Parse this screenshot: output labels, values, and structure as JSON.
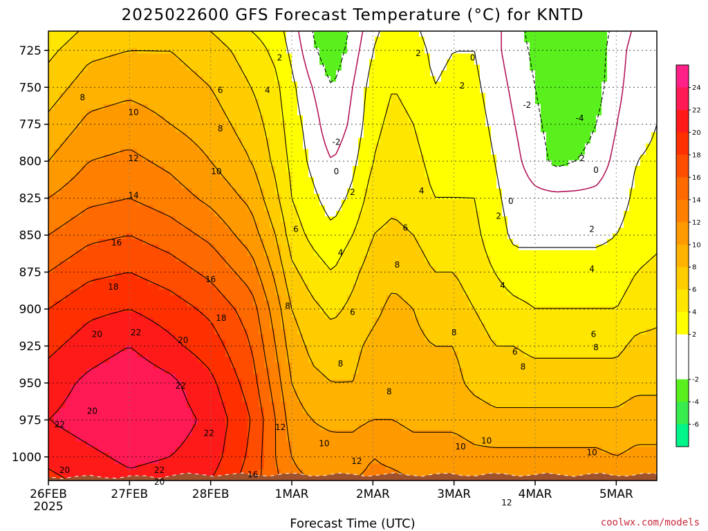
{
  "chart_data": {
    "type": "heatmap",
    "title": "2025022600 GFS Forecast Temperature (°C) for KNTD",
    "xlabel": "Forecast Time (UTC)",
    "ylabel": "",
    "credit": "coolwx.com/models",
    "x_ticks": [
      {
        "label": "26FEB",
        "sublabel": "2025",
        "day": 0
      },
      {
        "label": "27FEB",
        "sublabel": "",
        "day": 1
      },
      {
        "label": "28FEB",
        "sublabel": "",
        "day": 2
      },
      {
        "label": "1MAR",
        "sublabel": "",
        "day": 3
      },
      {
        "label": "2MAR",
        "sublabel": "",
        "day": 4
      },
      {
        "label": "3MAR",
        "sublabel": "",
        "day": 5
      },
      {
        "label": "4MAR",
        "sublabel": "",
        "day": 6
      },
      {
        "label": "5MAR",
        "sublabel": "",
        "day": 7
      }
    ],
    "xlim": [
      0,
      7.5
    ],
    "y_ticks": [
      725,
      750,
      775,
      800,
      825,
      850,
      875,
      900,
      925,
      950,
      975,
      1000
    ],
    "ylim": [
      1016,
      712
    ],
    "y_scale": "linear-pressure-inverted",
    "grid": true,
    "colorbar": {
      "position": "right",
      "levels": [
        -8,
        -6,
        -4,
        -2,
        0,
        2,
        4,
        6,
        8,
        10,
        12,
        14,
        16,
        18,
        20,
        22,
        24,
        26
      ],
      "tick_labels": [
        "24",
        "22",
        "20",
        "18",
        "16",
        "14",
        "12",
        "10",
        "8",
        "6",
        "4",
        "2",
        "-2",
        "-4",
        "-6"
      ],
      "colors": [
        "#00f58a",
        "#38ec4e",
        "#5af01e",
        "#ffffff",
        "#ffffff",
        "#ffff00",
        "#ffe600",
        "#ffcc00",
        "#ffb300",
        "#ff9900",
        "#ff8000",
        "#ff6a00",
        "#ff4d00",
        "#ff3000",
        "#ff1a1a",
        "#ff1a55",
        "#ff2088"
      ]
    },
    "ground_color": "#a0522d",
    "freezing_line_color": "#b4145a",
    "field_columns_day": [
      0.0,
      0.5,
      1.0,
      1.5,
      2.0,
      2.5,
      2.8,
      3.0,
      3.25,
      3.5,
      3.75,
      4.0,
      4.25,
      4.5,
      4.75,
      5.0,
      5.25,
      5.5,
      5.75,
      6.0,
      6.25,
      6.5,
      6.75,
      7.0,
      7.25,
      7.5
    ],
    "field_rows_pressure": [
      712,
      725,
      750,
      775,
      800,
      825,
      850,
      875,
      900,
      925,
      950,
      975,
      1000,
      1016
    ],
    "temperature_field_c": [
      [
        4.5,
        6.5,
        7.0,
        7.0,
        6.0,
        4.0,
        3.0,
        1.0,
        -2.0,
        -4.0,
        -1.5,
        1.5,
        3.0,
        2.5,
        1.0,
        1.5,
        1.5,
        0.5,
        -1.0,
        -3.0,
        -3.5,
        -4.0,
        -3.0,
        -1.5,
        0.5,
        1.0
      ],
      [
        5.5,
        7.5,
        8.0,
        8.0,
        7.0,
        5.0,
        3.5,
        1.5,
        -1.5,
        -3.5,
        -1.0,
        2.0,
        3.5,
        3.0,
        1.5,
        2.0,
        2.0,
        0.5,
        -1.0,
        -2.5,
        -3.5,
        -4.0,
        -3.0,
        -1.0,
        1.0,
        1.5
      ],
      [
        7.0,
        9.0,
        9.5,
        9.0,
        8.0,
        6.0,
        4.5,
        2.5,
        0.0,
        -2.0,
        0.0,
        3.0,
        4.0,
        3.5,
        2.0,
        2.5,
        2.5,
        1.0,
        -0.5,
        -2.0,
        -3.5,
        -4.0,
        -3.0,
        -0.5,
        1.0,
        1.5
      ],
      [
        8.5,
        10.5,
        11.0,
        10.0,
        9.0,
        7.0,
        5.0,
        3.0,
        1.0,
        -1.5,
        0.5,
        3.5,
        4.5,
        4.0,
        3.0,
        3.0,
        3.0,
        1.5,
        0.0,
        -1.5,
        -3.0,
        -3.5,
        -2.0,
        0.0,
        1.0,
        2.0
      ],
      [
        10.0,
        12.0,
        12.5,
        11.5,
        10.0,
        8.0,
        5.5,
        3.5,
        1.5,
        0.0,
        1.5,
        4.0,
        5.0,
        4.5,
        3.5,
        3.5,
        3.5,
        2.0,
        0.5,
        -1.0,
        -2.5,
        -2.0,
        -1.0,
        0.5,
        2.0,
        2.5
      ],
      [
        12.0,
        13.5,
        14.0,
        13.0,
        11.5,
        9.5,
        6.5,
        4.0,
        2.5,
        1.0,
        2.5,
        5.0,
        5.5,
        5.0,
        4.0,
        4.0,
        4.0,
        2.5,
        1.0,
        0.5,
        0.5,
        0.5,
        0.5,
        1.0,
        2.5,
        3.0
      ],
      [
        14.0,
        15.5,
        16.0,
        15.0,
        13.5,
        11.0,
        8.0,
        5.0,
        3.5,
        2.5,
        4.0,
        6.0,
        6.5,
        6.0,
        5.0,
        5.0,
        4.5,
        3.0,
        1.5,
        1.5,
        1.5,
        1.5,
        1.5,
        2.0,
        3.0,
        3.5
      ],
      [
        16.0,
        17.5,
        18.0,
        17.0,
        15.5,
        13.0,
        9.5,
        6.5,
        5.0,
        4.0,
        5.5,
        7.0,
        7.5,
        7.0,
        6.0,
        6.0,
        5.0,
        4.0,
        3.0,
        3.0,
        3.0,
        3.0,
        3.0,
        3.0,
        4.0,
        4.5
      ],
      [
        18.0,
        19.5,
        20.0,
        19.0,
        17.5,
        15.0,
        11.0,
        8.0,
        6.5,
        5.5,
        6.5,
        7.5,
        8.5,
        8.0,
        7.0,
        7.0,
        6.0,
        5.0,
        4.5,
        4.0,
        4.0,
        4.0,
        4.0,
        4.0,
        5.0,
        5.5
      ],
      [
        19.5,
        21.0,
        22.0,
        20.5,
        19.0,
        16.0,
        12.0,
        9.0,
        7.5,
        7.0,
        7.5,
        8.5,
        9.0,
        8.5,
        8.0,
        8.0,
        7.0,
        6.0,
        6.0,
        5.5,
        5.5,
        5.5,
        5.5,
        5.5,
        6.5,
        6.5
      ],
      [
        21.0,
        22.5,
        23.5,
        22.5,
        20.5,
        17.0,
        13.0,
        10.0,
        8.5,
        8.0,
        8.0,
        9.0,
        9.0,
        8.5,
        8.5,
        8.5,
        7.5,
        7.0,
        7.0,
        7.0,
        7.0,
        7.0,
        7.0,
        7.0,
        7.5,
        7.5
      ],
      [
        22.0,
        23.0,
        24.0,
        23.0,
        21.5,
        18.0,
        14.0,
        11.0,
        10.0,
        9.5,
        9.5,
        10.0,
        10.0,
        9.5,
        9.5,
        9.5,
        9.0,
        8.5,
        8.5,
        8.5,
        8.5,
        8.5,
        8.5,
        8.5,
        9.0,
        9.0
      ],
      [
        20.5,
        21.5,
        22.5,
        22.0,
        21.0,
        17.5,
        14.0,
        12.0,
        11.0,
        11.0,
        11.0,
        12.0,
        11.5,
        11.0,
        11.0,
        11.0,
        10.5,
        10.5,
        10.5,
        10.5,
        10.5,
        10.5,
        10.5,
        10.0,
        10.5,
        10.5
      ],
      [
        19.5,
        20.5,
        21.5,
        21.0,
        20.0,
        17.0,
        14.5,
        12.5,
        12.0,
        12.0,
        12.0,
        12.5,
        12.5,
        12.0,
        12.0,
        12.0,
        12.0,
        12.0,
        12.0,
        12.0,
        12.0,
        12.0,
        12.0,
        11.5,
        11.5,
        11.5
      ]
    ],
    "contour_labels": [
      {
        "text": "2",
        "day": 2.85,
        "p": 730
      },
      {
        "text": "0",
        "day": 5.23,
        "p": 730
      },
      {
        "text": "2",
        "day": 4.56,
        "p": 727
      },
      {
        "text": "8",
        "day": 0.42,
        "p": 757
      },
      {
        "text": "6",
        "day": 2.12,
        "p": 752
      },
      {
        "text": "4",
        "day": 2.7,
        "p": 752
      },
      {
        "text": "2",
        "day": 5.1,
        "p": 749
      },
      {
        "text": "-2",
        "day": 5.9,
        "p": 762
      },
      {
        "text": "-4",
        "day": 6.55,
        "p": 771
      },
      {
        "text": "10",
        "day": 1.05,
        "p": 767
      },
      {
        "text": "8",
        "day": 2.12,
        "p": 778
      },
      {
        "text": "-2",
        "day": 3.55,
        "p": 787
      },
      {
        "text": "12",
        "day": 1.05,
        "p": 798
      },
      {
        "text": "10",
        "day": 2.07,
        "p": 807
      },
      {
        "text": "0",
        "day": 3.55,
        "p": 807
      },
      {
        "text": "2",
        "day": 6.58,
        "p": 798
      },
      {
        "text": "0",
        "day": 6.75,
        "p": 806
      },
      {
        "text": "14",
        "day": 1.05,
        "p": 823
      },
      {
        "text": "2",
        "day": 3.75,
        "p": 821
      },
      {
        "text": "4",
        "day": 4.6,
        "p": 820
      },
      {
        "text": "0",
        "day": 5.7,
        "p": 827
      },
      {
        "text": "2",
        "day": 5.55,
        "p": 837
      },
      {
        "text": "6",
        "day": 3.05,
        "p": 846
      },
      {
        "text": "6",
        "day": 4.4,
        "p": 845
      },
      {
        "text": "2",
        "day": 6.7,
        "p": 846
      },
      {
        "text": "16",
        "day": 0.84,
        "p": 855
      },
      {
        "text": "4",
        "day": 3.6,
        "p": 862
      },
      {
        "text": "8",
        "day": 4.3,
        "p": 870
      },
      {
        "text": "18",
        "day": 0.8,
        "p": 885
      },
      {
        "text": "16",
        "day": 2.0,
        "p": 880
      },
      {
        "text": "4",
        "day": 6.7,
        "p": 873
      },
      {
        "text": "4",
        "day": 5.6,
        "p": 884
      },
      {
        "text": "8",
        "day": 2.95,
        "p": 898
      },
      {
        "text": "6",
        "day": 3.75,
        "p": 902
      },
      {
        "text": "18",
        "day": 2.13,
        "p": 906
      },
      {
        "text": "8",
        "day": 5.0,
        "p": 916
      },
      {
        "text": "20",
        "day": 0.6,
        "p": 917
      },
      {
        "text": "22",
        "day": 1.08,
        "p": 916
      },
      {
        "text": "20",
        "day": 1.66,
        "p": 921
      },
      {
        "text": "6",
        "day": 6.72,
        "p": 917
      },
      {
        "text": "6",
        "day": 5.75,
        "p": 929
      },
      {
        "text": "8",
        "day": 6.75,
        "p": 926
      },
      {
        "text": "8",
        "day": 3.6,
        "p": 937
      },
      {
        "text": "8",
        "day": 5.85,
        "p": 939
      },
      {
        "text": "22",
        "day": 1.63,
        "p": 952
      },
      {
        "text": "8",
        "day": 4.2,
        "p": 956
      },
      {
        "text": "20",
        "day": 0.54,
        "p": 969
      },
      {
        "text": "12",
        "day": 2.86,
        "p": 980
      },
      {
        "text": "22",
        "day": 0.14,
        "p": 978
      },
      {
        "text": "22",
        "day": 1.98,
        "p": 984
      },
      {
        "text": "10",
        "day": 3.4,
        "p": 991
      },
      {
        "text": "10",
        "day": 5.4,
        "p": 989
      },
      {
        "text": "10",
        "day": 5.08,
        "p": 993
      },
      {
        "text": "10",
        "day": 6.7,
        "p": 997
      },
      {
        "text": "12",
        "day": 3.8,
        "p": 1003
      },
      {
        "text": "20",
        "day": 0.2,
        "p": 1009
      },
      {
        "text": "16",
        "day": 2.52,
        "p": 1012
      },
      {
        "text": "22",
        "day": 1.37,
        "p": 1009
      },
      {
        "text": "20",
        "day": 1.37,
        "p": 1017
      },
      {
        "text": "12",
        "day": 5.65,
        "p": 1031
      }
    ]
  }
}
